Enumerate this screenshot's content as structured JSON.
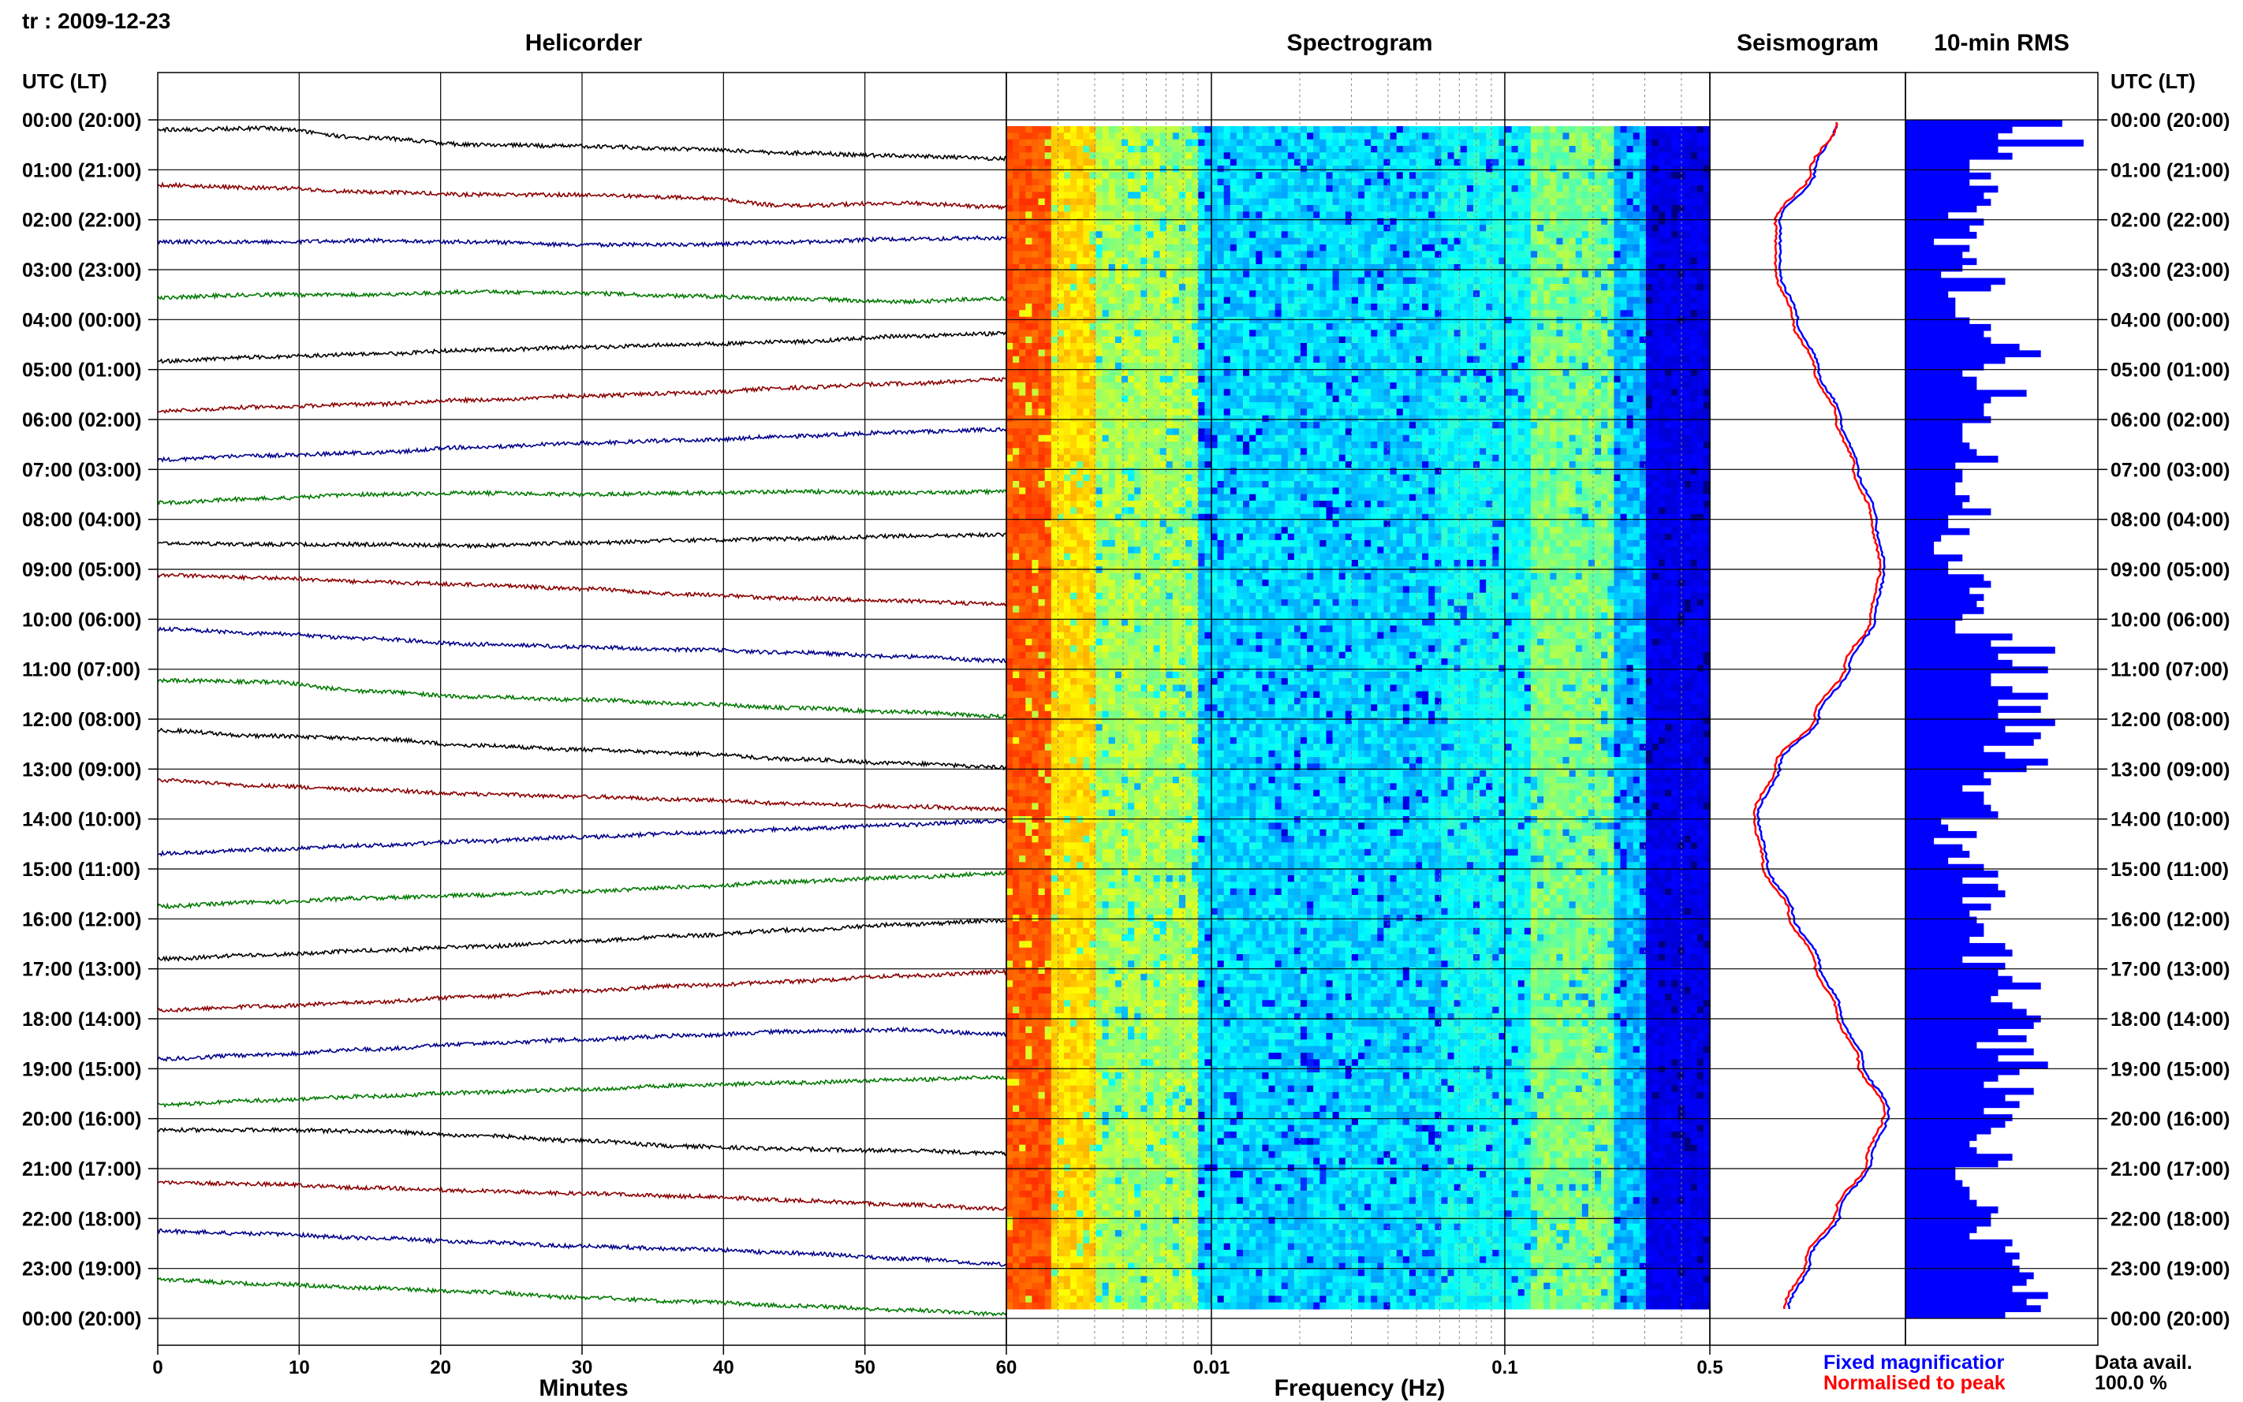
{
  "station_date": "tr : 2009-12-23",
  "panels": {
    "helicorder": "Helicorder",
    "spectrogram": "Spectrogram",
    "seismogram": "Seismogram",
    "rms": "10-min RMS"
  },
  "utc_lt_label": "UTC (LT)",
  "x_labels": {
    "helicorder": "Minutes",
    "spectrogram": "Frequency (Hz)"
  },
  "legend": {
    "fixed": "Fixed magnificatior",
    "normalised": "Normalised to peak"
  },
  "data_availability": {
    "label": "Data avail.",
    "value": "100.0 %"
  },
  "colors": {
    "trace_cycle": [
      "#000000",
      "#8b0000",
      "#00008b",
      "#007a00"
    ],
    "fixed": "#0000ff",
    "normalised": "#ff0000",
    "rms_bar": "#0000ff"
  },
  "chart_data": [
    {
      "type": "line",
      "name": "helicorder",
      "xlabel": "Minutes",
      "xlim": [
        0,
        60
      ],
      "x_ticks": [
        0,
        10,
        20,
        30,
        40,
        50,
        60
      ],
      "row_labels": [
        "00:00 (20:00)",
        "01:00 (21:00)",
        "02:00 (22:00)",
        "03:00 (23:00)",
        "04:00 (00:00)",
        "05:00 (01:00)",
        "06:00 (02:00)",
        "07:00 (03:00)",
        "08:00 (04:00)",
        "09:00 (05:00)",
        "10:00 (06:00)",
        "11:00 (07:00)",
        "12:00 (08:00)",
        "13:00 (09:00)",
        "14:00 (10:00)",
        "15:00 (11:00)",
        "16:00 (12:00)",
        "17:00 (13:00)",
        "18:00 (14:00)",
        "19:00 (15:00)",
        "20:00 (16:00)",
        "21:00 (17:00)",
        "22:00 (18:00)",
        "23:00 (19:00)",
        "00:00 (20:00)"
      ],
      "trace_drift": [
        [
          0.55,
          0.6,
          0.25,
          0.0,
          -0.05,
          -0.15,
          -0.3,
          -0.4,
          -0.5
        ],
        [
          0.35,
          0.25,
          0.1,
          0.0,
          0.0,
          -0.1,
          -0.4,
          -0.3,
          -0.45
        ],
        [
          0.1,
          0.1,
          0.15,
          0.1,
          0.0,
          0.0,
          0.1,
          0.2,
          0.25
        ],
        [
          -0.1,
          0.0,
          0.0,
          0.1,
          0.05,
          -0.05,
          -0.15,
          -0.25,
          -0.15
        ],
        [
          -0.6,
          -0.45,
          -0.35,
          -0.2,
          -0.1,
          0.0,
          0.1,
          0.3,
          0.4
        ],
        [
          -0.6,
          -0.45,
          -0.35,
          -0.2,
          -0.05,
          0.05,
          0.25,
          0.4,
          0.55
        ],
        [
          -0.55,
          -0.4,
          -0.3,
          -0.1,
          0.05,
          0.15,
          0.3,
          0.45,
          0.55
        ],
        [
          -0.3,
          -0.15,
          0.0,
          0.05,
          0.0,
          0.05,
          0.1,
          0.05,
          0.1
        ],
        [
          0.05,
          0.0,
          0.0,
          -0.05,
          0.05,
          0.15,
          0.2,
          0.3,
          0.35
        ],
        [
          0.7,
          0.6,
          0.45,
          0.35,
          0.2,
          0.0,
          -0.15,
          -0.25,
          -0.35
        ],
        [
          0.55,
          0.4,
          0.2,
          0.0,
          -0.1,
          -0.2,
          -0.3,
          -0.45,
          -0.6
        ],
        [
          0.5,
          0.45,
          0.1,
          -0.1,
          -0.2,
          -0.35,
          -0.5,
          -0.65,
          -0.8
        ],
        [
          0.5,
          0.3,
          0.2,
          -0.05,
          -0.2,
          -0.35,
          -0.55,
          -0.7,
          -0.85
        ],
        [
          0.5,
          0.3,
          0.15,
          0.0,
          -0.1,
          -0.2,
          -0.35,
          -0.45,
          -0.55
        ],
        [
          -0.35,
          -0.2,
          -0.05,
          0.1,
          0.25,
          0.4,
          0.55,
          0.7,
          0.85
        ],
        [
          -0.45,
          -0.3,
          -0.15,
          -0.05,
          0.1,
          0.25,
          0.45,
          0.6,
          0.75
        ],
        [
          -0.55,
          -0.4,
          -0.25,
          -0.1,
          0.1,
          0.3,
          0.5,
          0.7,
          0.85
        ],
        [
          -0.6,
          -0.45,
          -0.3,
          -0.1,
          0.1,
          0.3,
          0.45,
          0.65,
          0.8
        ],
        [
          -0.55,
          -0.4,
          -0.2,
          0.0,
          0.15,
          0.3,
          0.45,
          0.5,
          0.35
        ],
        [
          -0.4,
          -0.25,
          -0.1,
          0.05,
          0.15,
          0.3,
          0.4,
          0.5,
          0.6
        ],
        [
          0.5,
          0.5,
          0.45,
          0.3,
          0.1,
          -0.1,
          -0.2,
          -0.25,
          -0.35
        ],
        [
          0.4,
          0.35,
          0.2,
          0.1,
          0.0,
          -0.1,
          -0.25,
          -0.4,
          -0.55
        ],
        [
          0.45,
          0.35,
          0.2,
          0.05,
          -0.1,
          -0.2,
          -0.35,
          -0.55,
          -0.75
        ],
        [
          0.5,
          0.35,
          0.2,
          0.05,
          -0.15,
          -0.3,
          -0.45,
          -0.6,
          -0.75
        ]
      ]
    },
    {
      "type": "heatmap",
      "name": "spectrogram",
      "xlabel": "Frequency (Hz)",
      "x_scale": "log",
      "xlim": [
        0.002,
        0.5
      ],
      "x_tick_labels": [
        "0.01",
        "0.1",
        "0.5"
      ],
      "x_ticks": [
        0.01,
        0.1,
        0.5
      ],
      "colormap": "jet"
    },
    {
      "type": "line",
      "name": "seismogram",
      "series": [
        {
          "name": "Fixed magnificatior",
          "color": "#0000ff",
          "values": [
            0.35,
            0.1,
            -0.3,
            -0.3,
            -0.1,
            0.15,
            0.4,
            0.6,
            0.8,
            0.9,
            0.8,
            0.5,
            0.15,
            -0.3,
            -0.55,
            -0.45,
            -0.15,
            0.15,
            0.4,
            0.65,
            0.95,
            0.75,
            0.4,
            0.05,
            -0.2
          ]
        },
        {
          "name": "Normalised to peak",
          "color": "#ff0000",
          "values": [
            0.35,
            0.05,
            -0.35,
            -0.35,
            -0.15,
            0.1,
            0.35,
            0.55,
            0.75,
            0.85,
            0.75,
            0.45,
            0.1,
            -0.35,
            -0.6,
            -0.5,
            -0.2,
            0.1,
            0.35,
            0.6,
            0.9,
            0.7,
            0.35,
            0.0,
            -0.25
          ]
        }
      ]
    },
    {
      "type": "bar",
      "name": "10-min RMS",
      "values": [
        22,
        15,
        13,
        25,
        13,
        15,
        9,
        9,
        12,
        9,
        13,
        11,
        12,
        10,
        6,
        11,
        9,
        10,
        4,
        9,
        8,
        10,
        8,
        5,
        14,
        12,
        6,
        7,
        7,
        7,
        9,
        12,
        11,
        12,
        16,
        19,
        14,
        11,
        8,
        10,
        10,
        17,
        12,
        11,
        11,
        12,
        8,
        8,
        8,
        9,
        10,
        13,
        7,
        8,
        8,
        7,
        7,
        9,
        8,
        12,
        6,
        6,
        9,
        5,
        4,
        4,
        8,
        6,
        6,
        11,
        12,
        9,
        11,
        10,
        11,
        8,
        7,
        7,
        15,
        12,
        21,
        13,
        15,
        20,
        12,
        12,
        15,
        20,
        13,
        19,
        13,
        21,
        14,
        19,
        18,
        11,
        14,
        20,
        17,
        11,
        12,
        8,
        11,
        11,
        12,
        13,
        5,
        6,
        10,
        4,
        8,
        9,
        6,
        11,
        13,
        8,
        13,
        14,
        8,
        12,
        9,
        10,
        11,
        11,
        9,
        14,
        15,
        8,
        14,
        13,
        15,
        19,
        13,
        12,
        15,
        17,
        19,
        18,
        13,
        17,
        10,
        18,
        13,
        20,
        16,
        13,
        11,
        18,
        14,
        16,
        11,
        15,
        14,
        12,
        10,
        9,
        10,
        15,
        13,
        7,
        7,
        8,
        9,
        9,
        10,
        13,
        12,
        12,
        10,
        9,
        15,
        14,
        16,
        15,
        16,
        18,
        17,
        15,
        20,
        17,
        19,
        14
      ]
    }
  ]
}
